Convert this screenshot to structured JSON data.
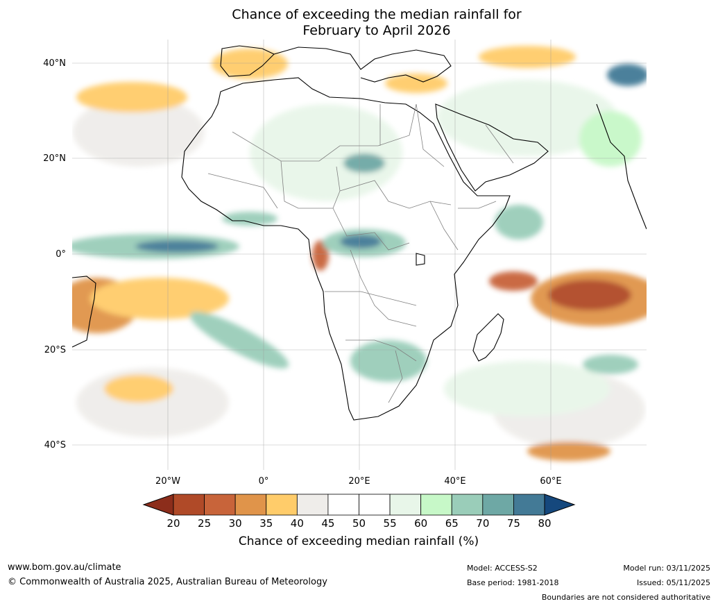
{
  "title": {
    "line1": "Chance of exceeding the median rainfall for",
    "line2": "February to April 2026"
  },
  "axes": {
    "lat_labels": [
      "40°N",
      "20°N",
      "0°",
      "20°S",
      "40°S"
    ],
    "lon_labels": [
      "20°W",
      "0°",
      "20°E",
      "40°E",
      "60°E"
    ]
  },
  "colorbar": {
    "ticks": [
      "20",
      "25",
      "30",
      "35",
      "40",
      "45",
      "50",
      "55",
      "60",
      "65",
      "70",
      "75",
      "80"
    ],
    "colors": [
      "#8c2d1b",
      "#b04a28",
      "#c8643a",
      "#e0944a",
      "#ffcc6a",
      "#efedea",
      "#ffffff",
      "#ffffff",
      "#e8f6e9",
      "#c7f8c8",
      "#9acdb9",
      "#6ea8a5",
      "#437a96",
      "#15487d"
    ],
    "title": "Chance of exceeding median rainfall (%)"
  },
  "footer": {
    "website": "www.bom.gov.au/climate",
    "copyright": "© Commonwealth of Australia 2025, Australian Bureau of Meteorology",
    "model": "Model: ACCESS-S2",
    "base_period": "Base period: 1981-2018",
    "model_run": "Model run: 03/11/2025",
    "issued": "Issued: 05/11/2025",
    "disclaimer": "Boundaries are not considered authoritative"
  }
}
